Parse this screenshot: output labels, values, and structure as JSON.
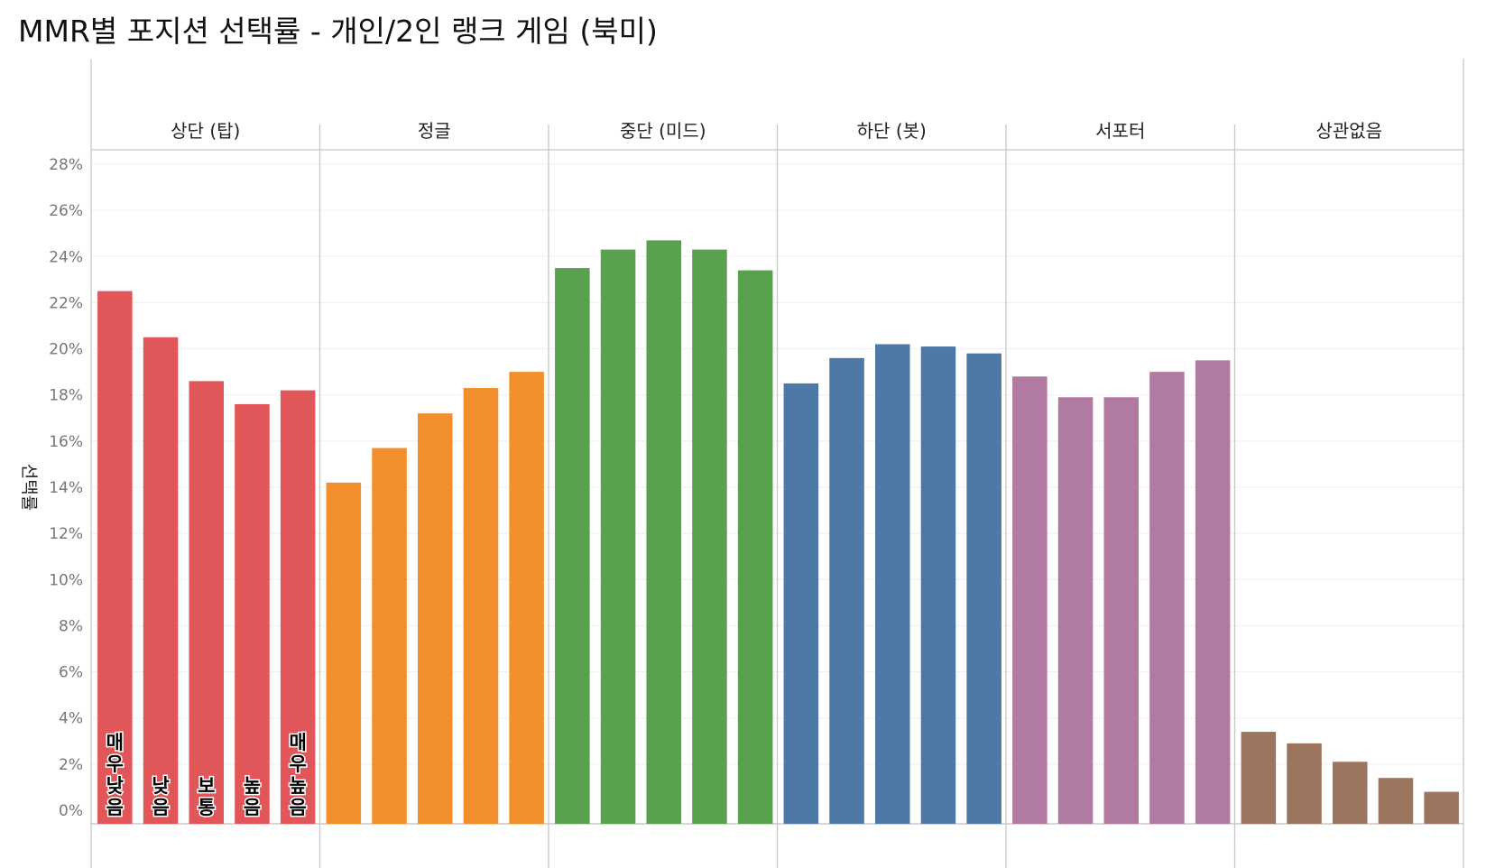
{
  "chart_data": {
    "type": "bar",
    "title": "MMR별 포지션 선택률 - 개인/2인 랭크 게임 (북미)",
    "ylabel": "선택률",
    "xlabel": "",
    "ylim": [
      0,
      28
    ],
    "yticks": [
      "0%",
      "2%",
      "4%",
      "6%",
      "8%",
      "10%",
      "12%",
      "14%",
      "16%",
      "18%",
      "20%",
      "22%",
      "24%",
      "26%",
      "28%"
    ],
    "grid": true,
    "categories": [
      "매우 낮음",
      "낮음",
      "보통",
      "높음",
      "매우 높음"
    ],
    "panels": [
      {
        "name": "상단 (탑)",
        "color": "#E15759",
        "values": [
          22.5,
          20.5,
          18.6,
          17.6,
          18.2
        ]
      },
      {
        "name": "정글",
        "color": "#F28E2B",
        "values": [
          14.2,
          15.7,
          17.2,
          18.3,
          19.0
        ]
      },
      {
        "name": "중단 (미드)",
        "color": "#59A14F",
        "values": [
          23.5,
          24.3,
          24.7,
          24.3,
          23.4
        ]
      },
      {
        "name": "하단 (봇)",
        "color": "#4E79A7",
        "values": [
          18.5,
          19.6,
          20.2,
          20.1,
          19.8
        ]
      },
      {
        "name": "서포터",
        "color": "#B07AA1",
        "values": [
          18.8,
          17.9,
          17.9,
          19.0,
          19.5
        ]
      },
      {
        "name": "상관없음",
        "color": "#9C755F",
        "values": [
          3.4,
          2.9,
          2.1,
          1.4,
          0.8
        ]
      }
    ]
  }
}
